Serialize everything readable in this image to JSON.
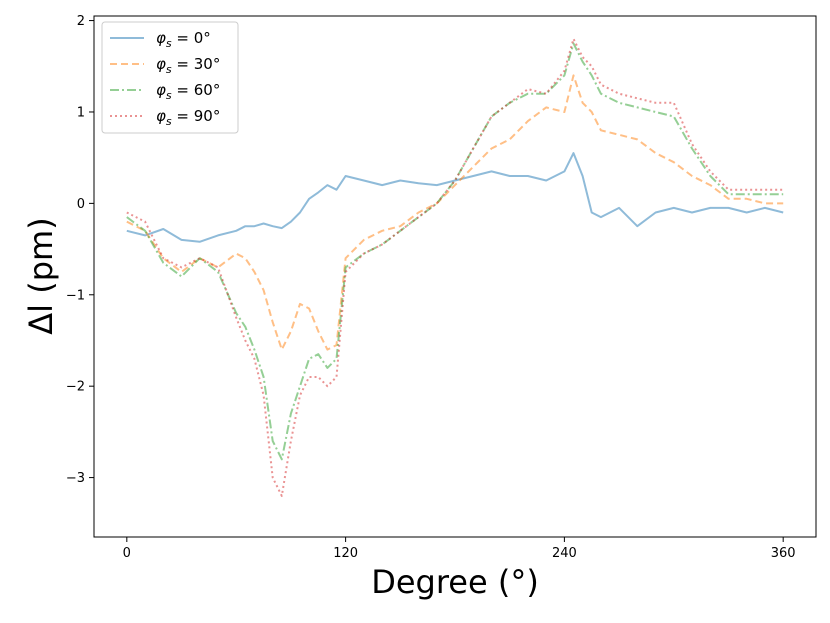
{
  "chart_data": {
    "type": "line",
    "title": "",
    "xlabel": "Degree (°)",
    "ylabel": "Δl (pm)",
    "xlim": [
      -18,
      378
    ],
    "ylim": [
      -3.65,
      2.05
    ],
    "xticks": [
      0,
      120,
      240,
      360
    ],
    "yticks": [
      -3,
      -2,
      -1,
      0,
      1,
      2
    ],
    "xtick_labels": [
      "0",
      "120",
      "240",
      "360"
    ],
    "ytick_labels": [
      "−3",
      "−2",
      "−1",
      "0",
      "1",
      "2"
    ],
    "grid": false,
    "legend_position": "top-left",
    "x": [
      0,
      10,
      20,
      30,
      40,
      50,
      60,
      65,
      70,
      75,
      80,
      85,
      90,
      95,
      100,
      105,
      110,
      115,
      120,
      130,
      140,
      150,
      160,
      170,
      180,
      190,
      200,
      210,
      220,
      230,
      240,
      245,
      250,
      255,
      260,
      270,
      280,
      290,
      300,
      310,
      320,
      330,
      340,
      350,
      360
    ],
    "series": [
      {
        "name": "φs = 0°",
        "legend_label": "φ",
        "legend_sub": "s",
        "legend_value": " = 0°",
        "color": "#1f77b4",
        "dash": "",
        "values": [
          -0.3,
          -0.35,
          -0.28,
          -0.4,
          -0.42,
          -0.35,
          -0.3,
          -0.25,
          -0.25,
          -0.22,
          -0.25,
          -0.27,
          -0.2,
          -0.1,
          0.05,
          0.12,
          0.2,
          0.15,
          0.3,
          0.25,
          0.2,
          0.25,
          0.22,
          0.2,
          0.25,
          0.3,
          0.35,
          0.3,
          0.3,
          0.25,
          0.35,
          0.55,
          0.3,
          -0.1,
          -0.15,
          -0.05,
          -0.25,
          -0.1,
          -0.05,
          -0.1,
          -0.05,
          -0.05,
          -0.1,
          -0.05,
          -0.1
        ]
      },
      {
        "name": "φs = 30°",
        "legend_label": "φ",
        "legend_sub": "s",
        "legend_value": " = 30°",
        "color": "#ff7f0e",
        "dash": "7,4",
        "values": [
          -0.2,
          -0.3,
          -0.6,
          -0.75,
          -0.6,
          -0.7,
          -0.55,
          -0.6,
          -0.75,
          -0.95,
          -1.3,
          -1.6,
          -1.4,
          -1.1,
          -1.15,
          -1.4,
          -1.6,
          -1.55,
          -0.6,
          -0.4,
          -0.3,
          -0.25,
          -0.1,
          0.0,
          0.2,
          0.4,
          0.6,
          0.7,
          0.9,
          1.05,
          1.0,
          1.4,
          1.1,
          1.0,
          0.8,
          0.75,
          0.7,
          0.55,
          0.45,
          0.3,
          0.2,
          0.05,
          0.05,
          0.0,
          0.0
        ]
      },
      {
        "name": "φs = 60°",
        "legend_label": "φ",
        "legend_sub": "s",
        "legend_value": " = 60°",
        "color": "#2ca02c",
        "dash": "9,3,2,3",
        "values": [
          -0.15,
          -0.3,
          -0.65,
          -0.8,
          -0.6,
          -0.75,
          -1.2,
          -1.35,
          -1.6,
          -1.9,
          -2.6,
          -2.8,
          -2.3,
          -2.0,
          -1.7,
          -1.65,
          -1.8,
          -1.7,
          -0.7,
          -0.55,
          -0.45,
          -0.3,
          -0.15,
          0.0,
          0.25,
          0.6,
          0.95,
          1.1,
          1.2,
          1.2,
          1.4,
          1.75,
          1.55,
          1.4,
          1.2,
          1.1,
          1.05,
          1.0,
          0.95,
          0.6,
          0.3,
          0.1,
          0.1,
          0.1,
          0.1
        ]
      },
      {
        "name": "φs = 90°",
        "legend_label": "φ",
        "legend_sub": "s",
        "legend_value": " = 90°",
        "color": "#d62728",
        "dash": "2,3",
        "values": [
          -0.1,
          -0.2,
          -0.6,
          -0.7,
          -0.6,
          -0.7,
          -1.25,
          -1.5,
          -1.7,
          -2.1,
          -3.0,
          -3.2,
          -2.6,
          -2.1,
          -1.9,
          -1.9,
          -2.0,
          -1.9,
          -0.75,
          -0.55,
          -0.45,
          -0.3,
          -0.15,
          0.0,
          0.25,
          0.6,
          0.95,
          1.1,
          1.25,
          1.2,
          1.45,
          1.8,
          1.6,
          1.5,
          1.3,
          1.2,
          1.15,
          1.1,
          1.1,
          0.65,
          0.35,
          0.15,
          0.15,
          0.15,
          0.15
        ]
      }
    ]
  }
}
